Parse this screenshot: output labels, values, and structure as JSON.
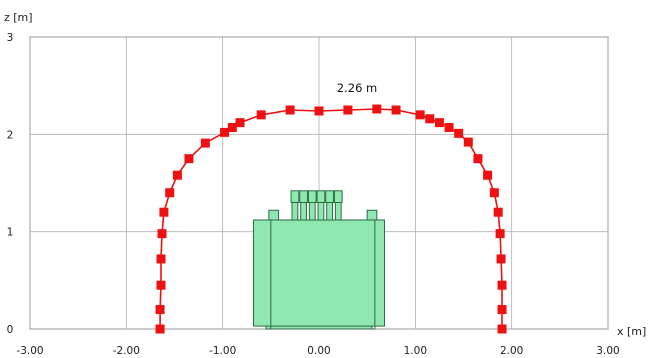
{
  "chart_data": {
    "type": "line",
    "xlabel": "x [m]",
    "ylabel": "z [m]",
    "xlim": [
      -3.0,
      3.0
    ],
    "ylim": [
      0,
      3
    ],
    "xticks": [
      "-3.00",
      "-2.00",
      "-1.00",
      "0.00",
      "1.00",
      "2.00",
      "3.00"
    ],
    "yticks": [
      "0",
      "1",
      "2",
      "3"
    ],
    "grid": true,
    "annotation": {
      "text": "2.26 m",
      "x": 0.6,
      "z": 2.26
    },
    "series": [
      {
        "name": "",
        "color": "#ee1111",
        "marker": "square",
        "points": [
          [
            -1.65,
            0.0
          ],
          [
            -1.65,
            0.2
          ],
          [
            -1.64,
            0.45
          ],
          [
            -1.64,
            0.72
          ],
          [
            -1.63,
            0.98
          ],
          [
            -1.61,
            1.2
          ],
          [
            -1.55,
            1.4
          ],
          [
            -1.47,
            1.58
          ],
          [
            -1.35,
            1.75
          ],
          [
            -1.18,
            1.91
          ],
          [
            -0.98,
            2.02
          ],
          [
            -0.9,
            2.07
          ],
          [
            -0.82,
            2.12
          ],
          [
            -0.6,
            2.2
          ],
          [
            -0.3,
            2.25
          ],
          [
            0.0,
            2.24
          ],
          [
            0.3,
            2.25
          ],
          [
            0.6,
            2.26
          ],
          [
            0.8,
            2.25
          ],
          [
            1.05,
            2.2
          ],
          [
            1.15,
            2.16
          ],
          [
            1.25,
            2.12
          ],
          [
            1.35,
            2.07
          ],
          [
            1.45,
            2.01
          ],
          [
            1.55,
            1.92
          ],
          [
            1.65,
            1.75
          ],
          [
            1.75,
            1.58
          ],
          [
            1.82,
            1.4
          ],
          [
            1.86,
            1.2
          ],
          [
            1.88,
            0.98
          ],
          [
            1.89,
            0.72
          ],
          [
            1.9,
            0.45
          ],
          [
            1.9,
            0.2
          ],
          [
            1.9,
            0.0
          ]
        ]
      }
    ]
  },
  "transformer": {
    "color": "#8ee8b0",
    "stroke": "#2f6a44"
  }
}
